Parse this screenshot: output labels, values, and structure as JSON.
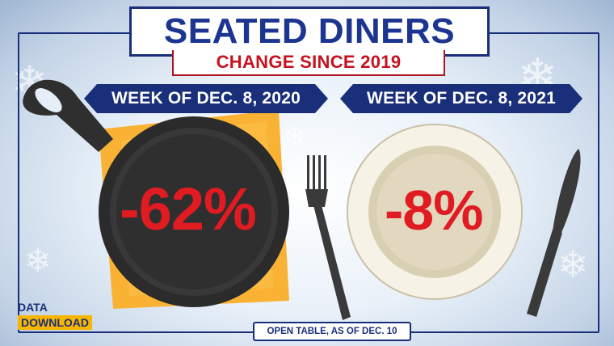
{
  "title": "SEATED DINERS",
  "subtitle": "CHANGE SINCE 2019",
  "panels": [
    {
      "label": "WEEK OF DEC. 8, 2020",
      "value": "-62%"
    },
    {
      "label": "WEEK OF DEC. 8, 2021",
      "value": "-8%"
    }
  ],
  "source": "OPEN TABLE, AS OF DEC. 10",
  "logo": {
    "line1": "DATA",
    "line2": "DOWNLOAD"
  },
  "colors": {
    "navy": "#1a2f7a",
    "red": "#e11b22",
    "yellow_napkin": "#f9b233",
    "skillet": "#2e2e2e",
    "plate": "#f4f0e4"
  },
  "icons": [
    "snowflake-icon",
    "skillet-icon",
    "plate-icon",
    "fork-icon",
    "knife-icon",
    "napkin-icon"
  ]
}
